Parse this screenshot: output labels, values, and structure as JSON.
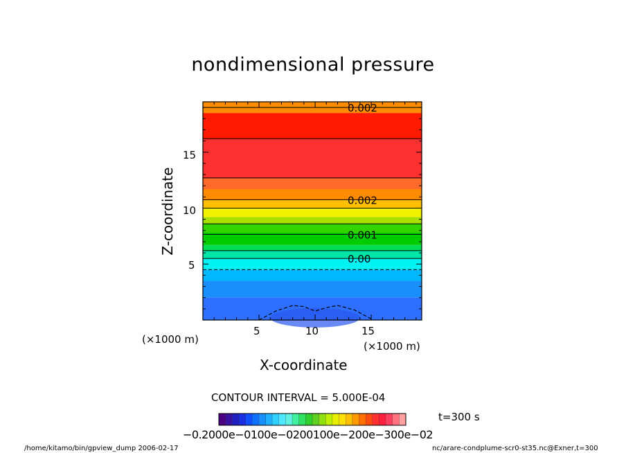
{
  "title": "nondimensional pressure",
  "footer_left": "/home/kitamo/bin/gpview_dump  2006-02-17",
  "footer_right": "nc/arare-condplume-scr0-st35.nc@Exner,t=300",
  "contour_interval_text": "CONTOUR INTERVAL = 5.000E-04",
  "time_text": "t=300 s",
  "colorbar_labels_text": "−0.2000e−0100e−0200100e−200e−300e−02",
  "chart_data": {
    "type": "heatmap",
    "title": "nondimensional pressure",
    "xlabel": "X-coordinate",
    "ylabel": "Z-coordinate",
    "x_unit": "(×1000 m)",
    "z_unit": "(×1000 m)",
    "xlim": [
      0,
      19.5
    ],
    "ylim": [
      0,
      19.5
    ],
    "x_ticks": [
      5,
      10,
      15
    ],
    "y_ticks": [
      5,
      10,
      15
    ],
    "contour_interval": 0.0005,
    "contour_labels": [
      {
        "text": "0.002",
        "z": 19
      },
      {
        "text": "0.002",
        "z": 10.75
      },
      {
        "text": "0.001",
        "z": 7.65
      },
      {
        "text": "0.00",
        "z": 5.5
      }
    ],
    "color_bands_top_to_bottom": [
      {
        "z": [
          19.5,
          18.5
        ],
        "color": "#ff8c00"
      },
      {
        "z": [
          18.5,
          16.2
        ],
        "color": "#ff1a00"
      },
      {
        "z": [
          16.2,
          12.7
        ],
        "color": "#ff3030"
      },
      {
        "z": [
          12.7,
          11.7
        ],
        "color": "#ff6a2a"
      },
      {
        "z": [
          11.7,
          10.7
        ],
        "color": "#ff8c00"
      },
      {
        "z": [
          10.7,
          10.0
        ],
        "color": "#ffc000"
      },
      {
        "z": [
          10.0,
          9.2
        ],
        "color": "#f2f200"
      },
      {
        "z": [
          9.2,
          8.6
        ],
        "color": "#a8e000"
      },
      {
        "z": [
          8.6,
          7.8
        ],
        "color": "#34d400"
      },
      {
        "z": [
          7.8,
          6.7
        ],
        "color": "#00cc00"
      },
      {
        "z": [
          6.7,
          6.2
        ],
        "color": "#00dd55"
      },
      {
        "z": [
          6.2,
          5.5
        ],
        "color": "#00e6a8"
      },
      {
        "z": [
          5.5,
          4.5
        ],
        "color": "#00f2f2"
      },
      {
        "z": [
          4.5,
          3.5
        ],
        "color": "#00b8ff"
      },
      {
        "z": [
          3.5,
          2.0
        ],
        "color": "#1a90ff"
      },
      {
        "z": [
          2.0,
          0.0
        ],
        "color": "#2f6fff"
      }
    ],
    "solid_contours_z": [
      19.0,
      16.2,
      12.7,
      10.75,
      10.0,
      8.6,
      7.65,
      6.2,
      5.5
    ],
    "dashed_contour_z": 4.5,
    "dashed_bump_points": [
      [
        5.0,
        0.0
      ],
      [
        6.5,
        0.8
      ],
      [
        8.0,
        1.3
      ],
      [
        9.0,
        1.2
      ],
      [
        10.0,
        0.8
      ],
      [
        11.0,
        1.1
      ],
      [
        12.0,
        1.3
      ],
      [
        13.5,
        0.9
      ],
      [
        15.0,
        0.1
      ]
    ],
    "colorbar": {
      "range": [
        -0.002,
        0.003
      ],
      "colors": [
        "#4a0080",
        "#3a10a0",
        "#2020c0",
        "#1a30e0",
        "#1050ff",
        "#1070ff",
        "#1890ff",
        "#20b0ff",
        "#30d0ff",
        "#50e8ff",
        "#60f0e0",
        "#40f0a0",
        "#30e060",
        "#30d030",
        "#60d020",
        "#90e010",
        "#c0f000",
        "#e8f000",
        "#ffe000",
        "#ffc000",
        "#ff9a00",
        "#ff7000",
        "#ff4a10",
        "#ff3030",
        "#ff2040",
        "#ff4060",
        "#ff7080",
        "#ffa0a0"
      ]
    }
  }
}
